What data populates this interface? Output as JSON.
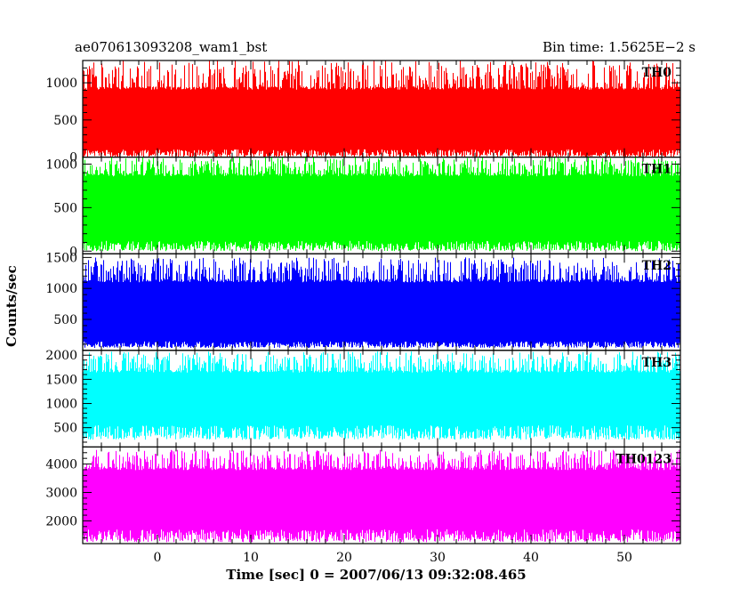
{
  "header": {
    "title": "ae070613093208_wam1_bst",
    "bin_time": "Bin time: 1.5625E−2 s"
  },
  "chart_data": {
    "type": "line",
    "x": {
      "range": [
        -8,
        56
      ],
      "label": "Time [sec] 0 = 2007/06/13 09:32:08.465",
      "ticks": [
        0,
        10,
        20,
        30,
        40,
        50
      ],
      "minor_step": 2
    },
    "ylabel": "Counts/sec",
    "bin_time_s": 0.015625,
    "data_start": -8,
    "data_end": 56,
    "panels": [
      {
        "label": "TH0",
        "color": "#ff0000",
        "ylim": [
          0,
          1300
        ],
        "ticks": [
          0,
          500,
          1000
        ],
        "minor_step": 100,
        "typical_low": 80,
        "typical_high": 950,
        "min": 0,
        "max": 1300
      },
      {
        "label": "TH1",
        "color": "#00ff00",
        "ylim": [
          -30,
          1080
        ],
        "ticks": [
          0,
          500,
          1000
        ],
        "minor_step": 100,
        "typical_low": 90,
        "typical_high": 900,
        "min": 0,
        "max": 1080
      },
      {
        "label": "TH2",
        "color": "#0000ff",
        "ylim": [
          0,
          1560
        ],
        "ticks": [
          500,
          1000,
          1500
        ],
        "minor_step": 100,
        "typical_low": 120,
        "typical_high": 1150,
        "min": 40,
        "max": 1500
      },
      {
        "label": "TH3",
        "color": "#00ffff",
        "ylim": [
          100,
          2100
        ],
        "ticks": [
          500,
          1000,
          1500,
          2000
        ],
        "minor_step": 100,
        "typical_low": 480,
        "typical_high": 1700,
        "min": 250,
        "max": 2080
      },
      {
        "label": "TH0123",
        "color": "#ff00ff",
        "ylim": [
          1200,
          4600
        ],
        "ticks": [
          2000,
          3000,
          4000
        ],
        "minor_step": 200,
        "typical_low": 1600,
        "typical_high": 3900,
        "min": 1250,
        "max": 4500
      }
    ]
  }
}
